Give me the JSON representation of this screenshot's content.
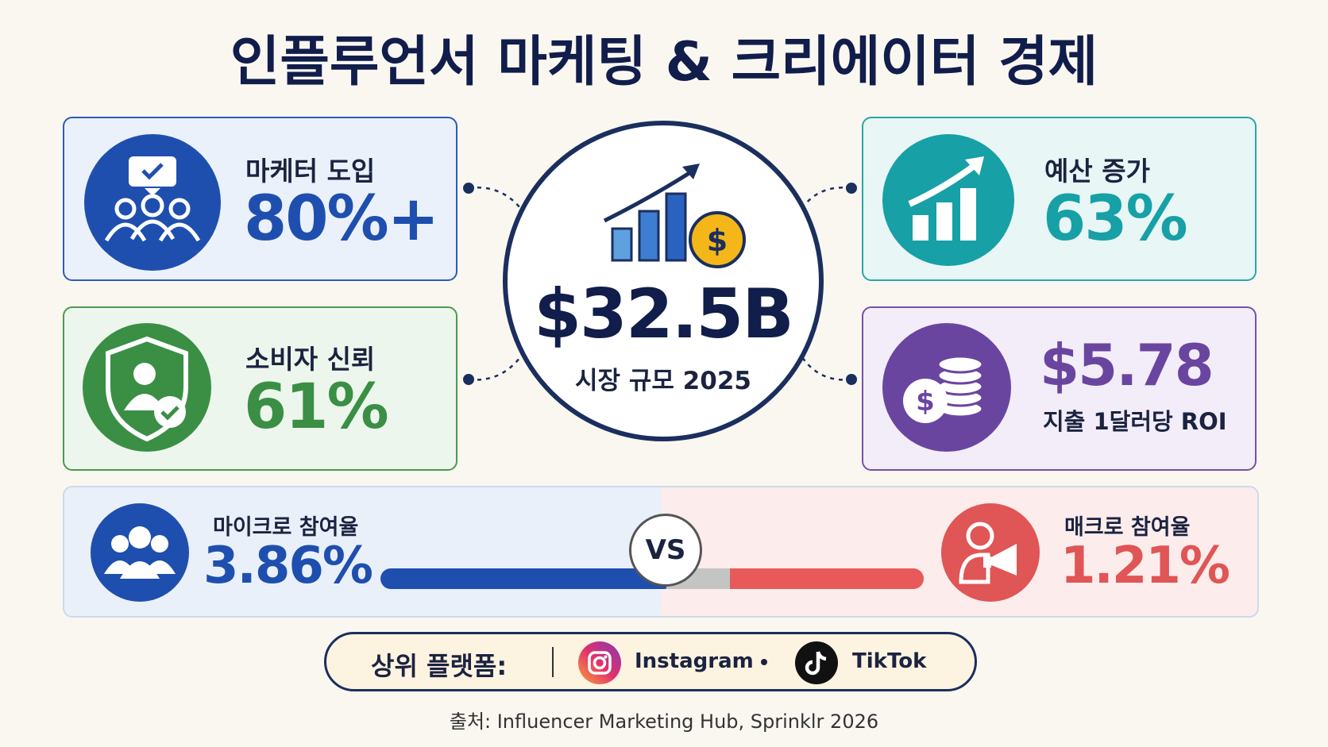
{
  "header": {
    "title": "인플루언서 마케팅 & 크리에이터 경제"
  },
  "center": {
    "value": "$32.5B",
    "label": "시장 규모 2025"
  },
  "cards": [
    {
      "label": "마케터 도입",
      "value": "80%+"
    },
    {
      "label": "소비자 신뢰",
      "value": "61%"
    },
    {
      "label": "예산 증가",
      "value": "63%"
    },
    {
      "label": "지출 1달러당 ROI",
      "value": "$5.78"
    }
  ],
  "comparison": {
    "left": {
      "label": "마이크로 참여율",
      "value": "3.86%"
    },
    "vs": "VS",
    "right": {
      "label": "매크로 참여율",
      "value": "1.21%"
    }
  },
  "platforms": {
    "label": "상위 플랫폼:",
    "items": [
      "Instagram",
      "TikTok"
    ]
  },
  "source": "출처: Influencer Marketing Hub, Sprinklr 2026"
}
